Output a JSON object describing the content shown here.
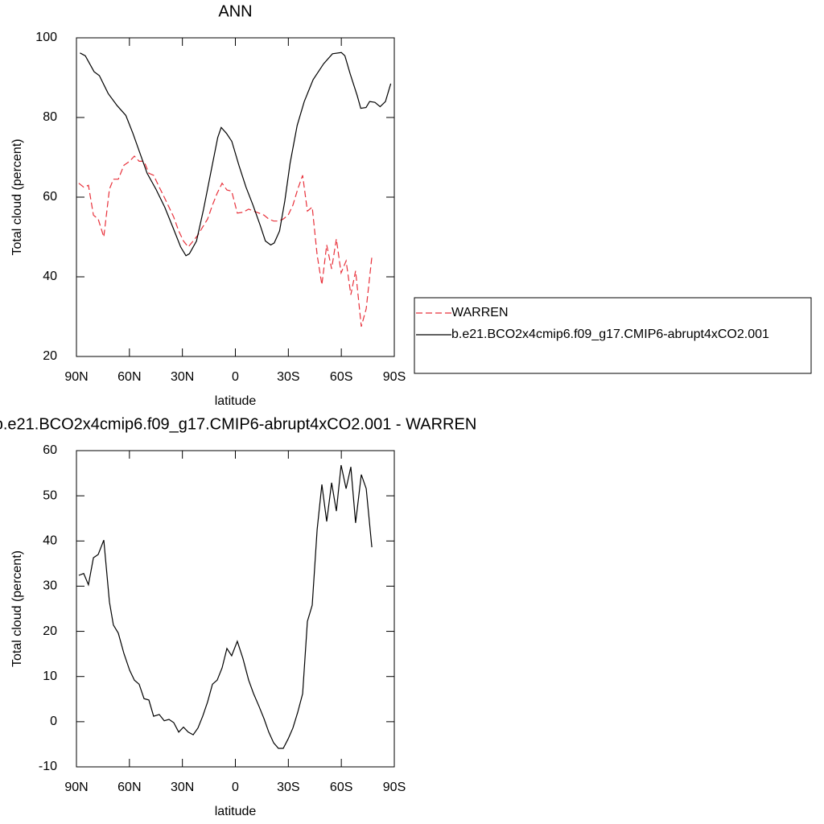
{
  "chart_data": [
    {
      "type": "line",
      "title": "ANN",
      "xlabel": "latitude",
      "ylabel": "Total cloud (percent)",
      "xlim": [
        90,
        -90
      ],
      "xticks": [
        {
          "value": 90,
          "label": "90N"
        },
        {
          "value": 60,
          "label": "60N"
        },
        {
          "value": 30,
          "label": "30N"
        },
        0,
        {
          "value": -30,
          "label": "30S"
        },
        {
          "value": -60,
          "label": "60S"
        },
        {
          "value": -90,
          "label": "90S"
        }
      ],
      "ylim": [
        20,
        100
      ],
      "yticks": [
        20,
        40,
        60,
        80,
        100
      ],
      "legend": "right",
      "series": [
        {
          "name": "WARREN",
          "color": "#e8303a",
          "line_style": "dashed",
          "x": [
            88.7,
            85.9,
            83.2,
            80.4,
            77.7,
            74.5,
            71.3,
            69.1,
            66.3,
            63.1,
            59.9,
            57.2,
            54.5,
            51.7,
            49,
            46.3,
            43.1,
            40.3,
            37.6,
            34.9,
            32.1,
            29.4,
            26.7,
            23.9,
            21.2,
            18.5,
            15.7,
            13,
            10.3,
            7.5,
            4.8,
            2.1,
            -1.1,
            -4.3,
            -7.5,
            -10.3,
            -13.4,
            -16.2,
            -18.9,
            -21.7,
            -24.4,
            -27.1,
            -29.9,
            -32.6,
            -35.3,
            -38.1,
            -40.8,
            -43.5,
            -46.3,
            -49,
            -51.7,
            -54.5,
            -57.2,
            -59.9,
            -62.7,
            -65.4,
            -68.1,
            -71.3,
            -74.1,
            -77.3
          ],
          "values": [
            63.5,
            62.5,
            63,
            55.5,
            54.5,
            50,
            62,
            64.5,
            64.5,
            68,
            69,
            70.3,
            69,
            69,
            66,
            65.5,
            62.5,
            60,
            57.5,
            55,
            51.5,
            49,
            47.5,
            49,
            50.5,
            52.5,
            54.5,
            58,
            61,
            63.5,
            61.8,
            61.5,
            56,
            56.2,
            57,
            56.5,
            56,
            55.5,
            54.5,
            54,
            54,
            54.5,
            55.5,
            58,
            62,
            65.5,
            56.5,
            57.5,
            45.5,
            38,
            48,
            42,
            49.5,
            41,
            44,
            35.5,
            41.5,
            27.5,
            32,
            45
          ]
        },
        {
          "name": "b.e21.BCO2x4cmip6.f09_g17.CMIP6-abrupt4xCO2.001",
          "color": "#000000",
          "line_style": "solid",
          "x": [
            88,
            85,
            80,
            77,
            72,
            67,
            62,
            58,
            54,
            50,
            45,
            40,
            35,
            31,
            28,
            26,
            22,
            18,
            14,
            10,
            8,
            5,
            2,
            -2,
            -6,
            -10,
            -14,
            -17,
            -20,
            -22,
            -25,
            -28,
            -31,
            -35,
            -39,
            -44,
            -50,
            -55,
            -60,
            -62,
            -65,
            -69,
            -71,
            -74,
            -76,
            -79,
            -82,
            -85,
            -88
          ],
          "values": [
            96.2,
            95.5,
            91.5,
            90.5,
            86,
            83,
            80.5,
            76,
            71,
            66,
            62,
            57.5,
            52,
            47.5,
            45.3,
            45.8,
            49,
            57,
            66,
            75,
            77.5,
            76,
            74,
            68,
            62.5,
            58,
            53,
            49,
            48,
            48.5,
            51.5,
            59,
            68.5,
            78,
            84,
            89.5,
            93.5,
            96,
            96.3,
            95.5,
            91,
            85.5,
            82.3,
            82.5,
            84,
            83.8,
            82.7,
            84,
            88.5
          ]
        }
      ]
    },
    {
      "type": "line",
      "title": "b.e21.BCO2x4cmip6.f09_g17.CMIP6-abrupt4xCO2.001 - WARREN",
      "xlabel": "latitude",
      "ylabel": "Total cloud (percent)",
      "xlim": [
        90,
        -90
      ],
      "xticks": [
        {
          "value": 90,
          "label": "90N"
        },
        {
          "value": 60,
          "label": "60N"
        },
        {
          "value": 30,
          "label": "30N"
        },
        0,
        {
          "value": -30,
          "label": "30S"
        },
        {
          "value": -60,
          "label": "60S"
        },
        {
          "value": -90,
          "label": "90S"
        }
      ],
      "ylim": [
        -10,
        60
      ],
      "yticks": [
        -10,
        0,
        10,
        20,
        30,
        40,
        50,
        60
      ],
      "series": [
        {
          "color": "#000000",
          "line_style": "solid",
          "x": [
            88.7,
            85.9,
            83.2,
            80.4,
            77.7,
            74.5,
            71.3,
            69.1,
            66.3,
            63.1,
            59.9,
            57.2,
            54.5,
            51.7,
            49,
            46.3,
            43.1,
            40.3,
            37.6,
            34.9,
            32.1,
            29.4,
            26.7,
            23.9,
            21.2,
            18.5,
            15.7,
            13,
            10.3,
            7.5,
            4.8,
            2.1,
            -1.1,
            -4.3,
            -7.5,
            -10.3,
            -13.4,
            -16.2,
            -18.9,
            -21.7,
            -24.4,
            -27.1,
            -29.9,
            -32.6,
            -35.3,
            -38.1,
            -40.8,
            -43.5,
            -46.3,
            -49,
            -51.7,
            -54.5,
            -57.2,
            -59.9,
            -62.7,
            -65.4,
            -68.1,
            -71.3,
            -74.1,
            -77.3
          ],
          "values": [
            32.4,
            32.8,
            30.3,
            36.3,
            37,
            40.2,
            26.5,
            21.4,
            19.6,
            15.1,
            11.4,
            9.2,
            8.3,
            5.1,
            4.8,
            1.2,
            1.6,
            0.2,
            0.5,
            -0.2,
            -2.3,
            -1.2,
            -2.3,
            -2.9,
            -1.4,
            1.2,
            4.4,
            8.3,
            9.2,
            11.9,
            16.2,
            14.6,
            17.8,
            14,
            9.2,
            6.2,
            3.4,
            0.7,
            -2.3,
            -4.7,
            -5.9,
            -5.9,
            -3.8,
            -1.4,
            2.1,
            6.2,
            22.2,
            25.8,
            42.5,
            52.5,
            44.3,
            52.9,
            46.6,
            56.8,
            51.6,
            56.4,
            44,
            54.7,
            51.6,
            38.6
          ]
        }
      ]
    }
  ]
}
